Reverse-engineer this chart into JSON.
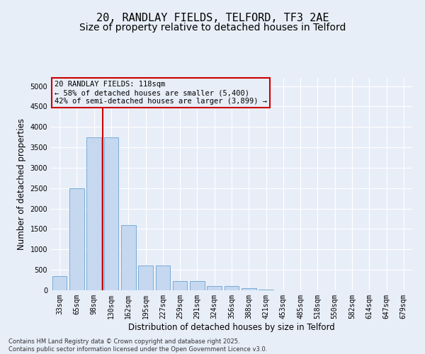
{
  "title_line1": "20, RANDLAY FIELDS, TELFORD, TF3 2AE",
  "title_line2": "Size of property relative to detached houses in Telford",
  "xlabel": "Distribution of detached houses by size in Telford",
  "ylabel": "Number of detached properties",
  "categories": [
    "33sqm",
    "65sqm",
    "98sqm",
    "130sqm",
    "162sqm",
    "195sqm",
    "227sqm",
    "259sqm",
    "291sqm",
    "324sqm",
    "356sqm",
    "388sqm",
    "421sqm",
    "453sqm",
    "485sqm",
    "518sqm",
    "550sqm",
    "582sqm",
    "614sqm",
    "647sqm",
    "679sqm"
  ],
  "values": [
    350,
    2500,
    3750,
    3750,
    1600,
    600,
    600,
    220,
    220,
    100,
    100,
    60,
    10,
    5,
    5,
    5,
    5,
    5,
    0,
    0,
    0
  ],
  "bar_color": "#c5d8f0",
  "bar_edgecolor": "#7aacd6",
  "vline_color": "#cc0000",
  "annotation_text": "20 RANDLAY FIELDS: 118sqm\n← 58% of detached houses are smaller (5,400)\n42% of semi-detached houses are larger (3,899) →",
  "annotation_box_color": "#cc0000",
  "ylim": [
    0,
    5200
  ],
  "yticks": [
    0,
    500,
    1000,
    1500,
    2000,
    2500,
    3000,
    3500,
    4000,
    4500,
    5000
  ],
  "background_color": "#e8eef8",
  "footnote": "Contains HM Land Registry data © Crown copyright and database right 2025.\nContains public sector information licensed under the Open Government Licence v3.0.",
  "title_fontsize": 11,
  "subtitle_fontsize": 10,
  "axis_label_fontsize": 8.5,
  "tick_fontsize": 7,
  "annotation_fontsize": 7.5,
  "footnote_fontsize": 6
}
